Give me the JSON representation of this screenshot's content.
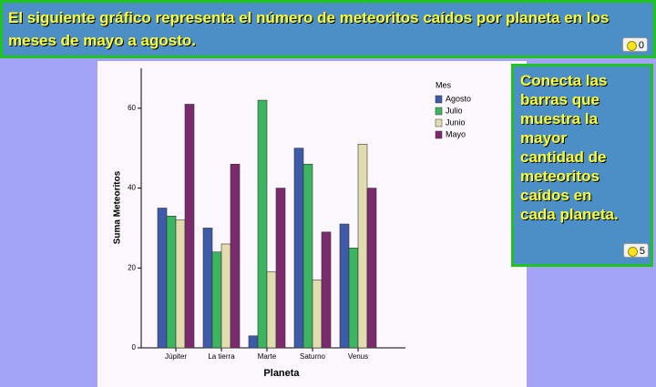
{
  "header": {
    "title": "El siguiente gráfico representa el número de meteoritos caídos por planeta en los meses de mayo a agosto.",
    "badge": "0"
  },
  "instruction": {
    "text": "Conecta las barras que muestra la mayor cantidad de meteoritos caídos en cada planeta.",
    "badge": "5"
  },
  "chart_data": {
    "type": "bar",
    "x_label": "Planeta",
    "y_label": "Suma Meteoritos",
    "legend_title": "Mes",
    "categories": [
      "Júpiter",
      "La tierra",
      "Marte",
      "Saturno",
      "Venus"
    ],
    "series": [
      {
        "name": "Agosto",
        "color": "#3d5ba8",
        "values": [
          35,
          30,
          3,
          50,
          31
        ]
      },
      {
        "name": "Julio",
        "color": "#3cb560",
        "values": [
          33,
          24,
          62,
          46,
          25
        ]
      },
      {
        "name": "Junio",
        "color": "#e2ddae",
        "values": [
          32,
          26,
          19,
          17,
          51
        ]
      },
      {
        "name": "Mayo",
        "color": "#7b2a6e",
        "values": [
          61,
          46,
          40,
          29,
          40
        ]
      }
    ],
    "ylim": [
      0,
      70
    ],
    "yticks": [
      0,
      20,
      40,
      60
    ]
  }
}
